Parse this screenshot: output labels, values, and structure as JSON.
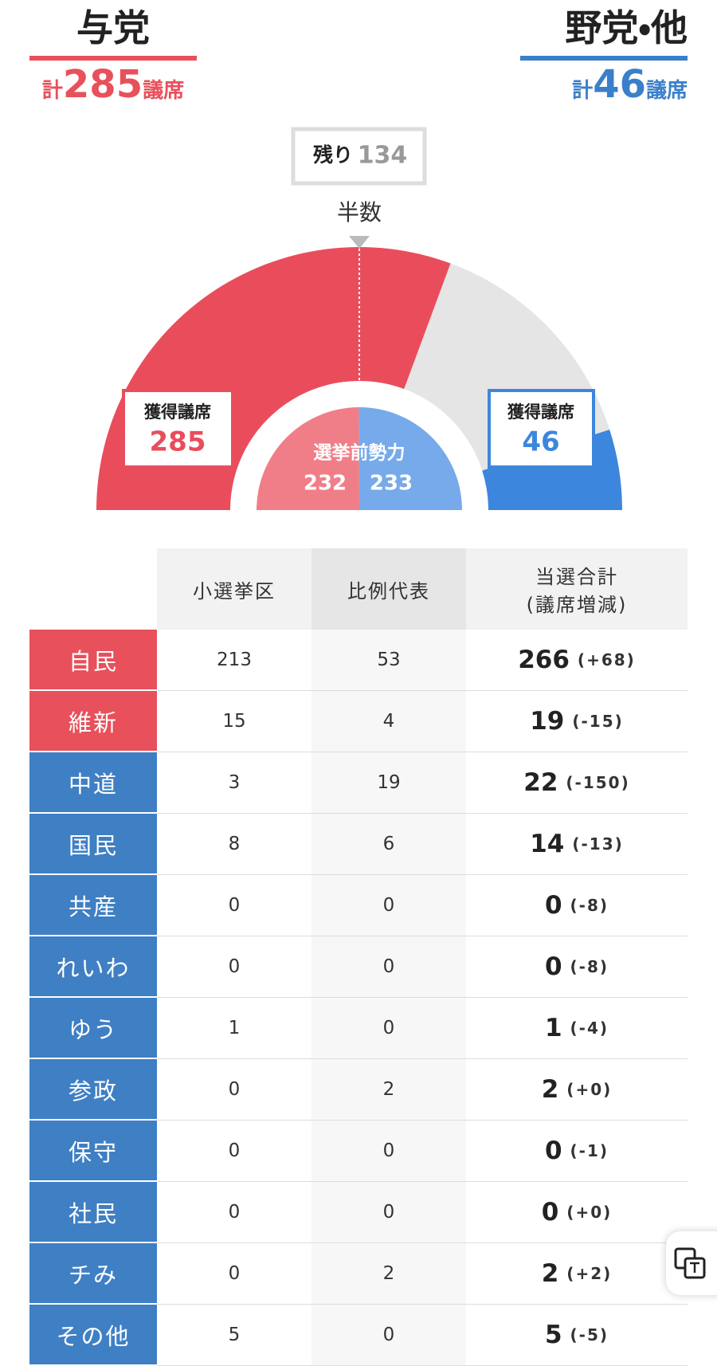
{
  "header": {
    "ruling": {
      "name": "与党",
      "prefix": "計",
      "seats": 285,
      "unit": "議席",
      "color": "#e8505b"
    },
    "opposition": {
      "name": "野党・他",
      "prefix": "計",
      "seats": 46,
      "unit": "議席",
      "color": "#3a7fc9"
    }
  },
  "gauge": {
    "remaining_label": "残り",
    "remaining": 134,
    "remaining_color": "#e5e5e5",
    "half_label": "半数",
    "ruling": {
      "label": "獲得議席",
      "seats": 285,
      "color": "#e94d5c"
    },
    "opposition": {
      "label": "獲得議席",
      "seats": 46,
      "color": "#3d86dd"
    },
    "previous": {
      "label": "選挙前勢力",
      "ruling": 232,
      "opposition": 233,
      "ruling_color": "#f07e88",
      "opposition_color": "#76aaea"
    }
  },
  "table": {
    "columns": [
      {
        "label": "小選挙区"
      },
      {
        "label": "比例代表"
      },
      {
        "label": "当選合計",
        "sub": "(議席増減)"
      }
    ],
    "rows": [
      {
        "party": "自民",
        "color": "#e8505b",
        "district": 213,
        "pr": 53,
        "total": 266,
        "change": "(+68)"
      },
      {
        "party": "維新",
        "color": "#e8505b",
        "district": 15,
        "pr": 4,
        "total": 19,
        "change": "(-15)"
      },
      {
        "party": "中道",
        "color": "#3f7fc4",
        "district": 3,
        "pr": 19,
        "total": 22,
        "change": "(-150)"
      },
      {
        "party": "国民",
        "color": "#3f7fc4",
        "district": 8,
        "pr": 6,
        "total": 14,
        "change": "(-13)"
      },
      {
        "party": "共産",
        "color": "#3f7fc4",
        "district": 0,
        "pr": 0,
        "total": 0,
        "change": "(-8)"
      },
      {
        "party": "れいわ",
        "color": "#3f7fc4",
        "district": 0,
        "pr": 0,
        "total": 0,
        "change": "(-8)"
      },
      {
        "party": "ゆう",
        "color": "#3f7fc4",
        "district": 1,
        "pr": 0,
        "total": 1,
        "change": "(-4)"
      },
      {
        "party": "参政",
        "color": "#3f7fc4",
        "district": 0,
        "pr": 2,
        "total": 2,
        "change": "(+0)"
      },
      {
        "party": "保守",
        "color": "#3f7fc4",
        "district": 0,
        "pr": 0,
        "total": 0,
        "change": "(-1)"
      },
      {
        "party": "社民",
        "color": "#3f7fc4",
        "district": 0,
        "pr": 0,
        "total": 0,
        "change": "(+0)"
      },
      {
        "party": "チみ",
        "color": "#3f7fc4",
        "district": 0,
        "pr": 2,
        "total": 2,
        "change": "(+2)"
      },
      {
        "party": "その他",
        "color": "#3f7fc4",
        "district": 5,
        "pr": 0,
        "total": 5,
        "change": "(-5)"
      }
    ]
  }
}
